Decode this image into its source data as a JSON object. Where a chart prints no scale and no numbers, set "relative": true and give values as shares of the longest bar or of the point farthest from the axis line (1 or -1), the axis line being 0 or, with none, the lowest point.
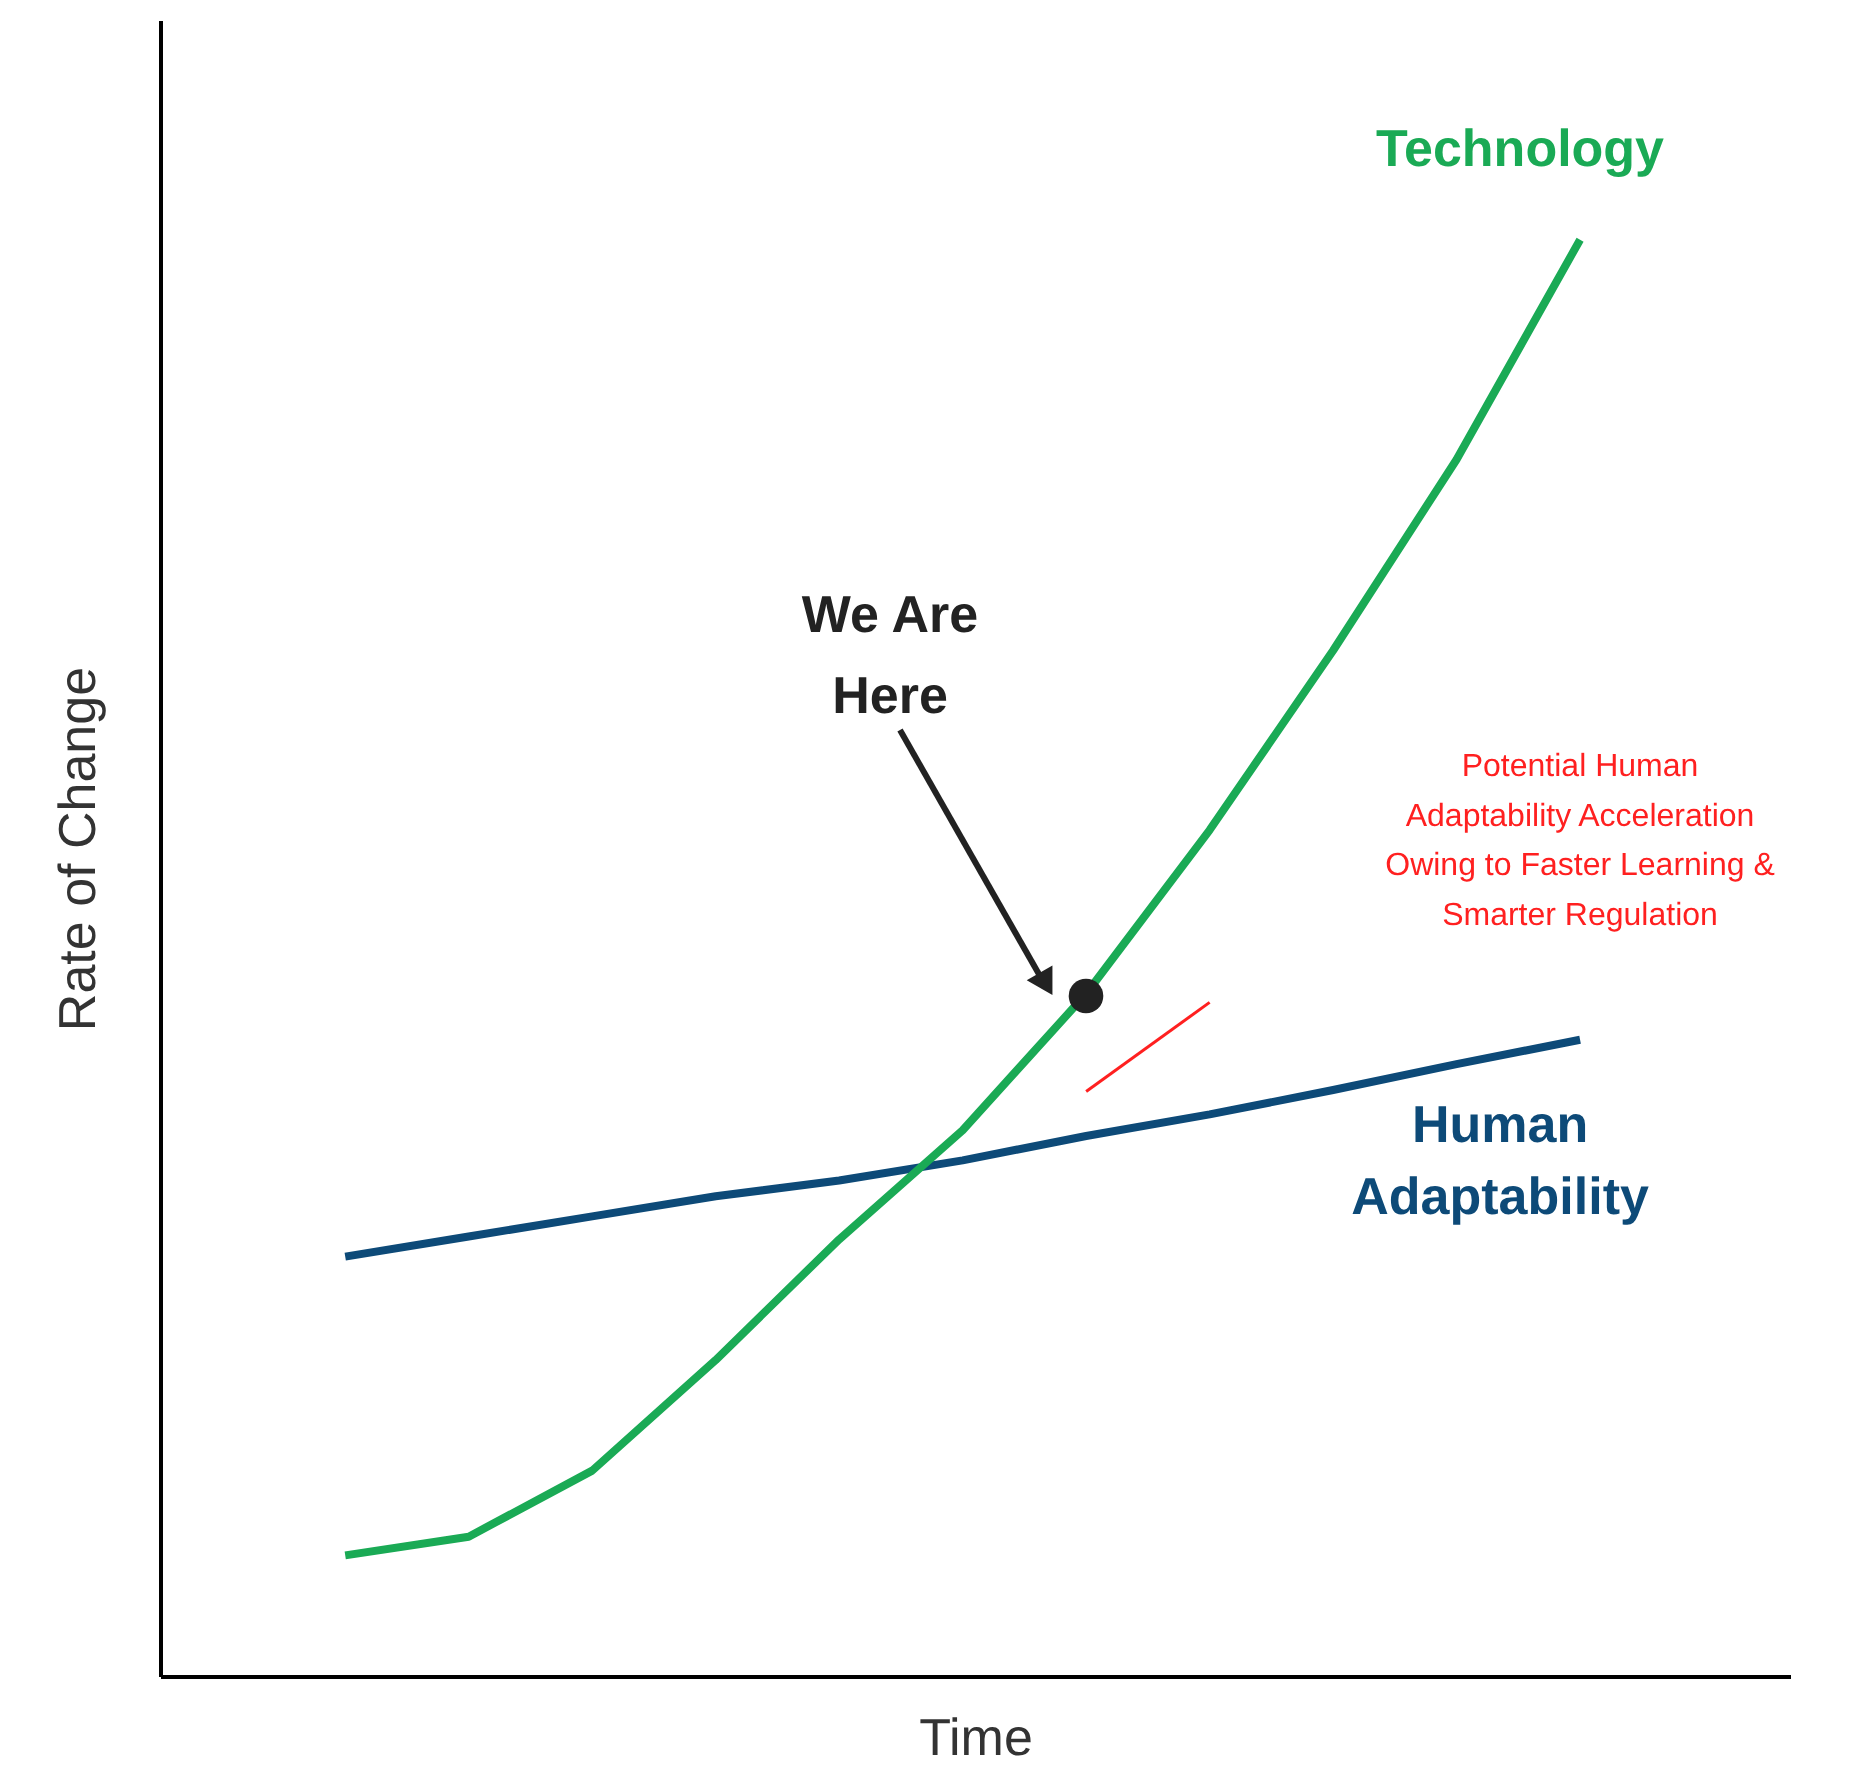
{
  "chart_data": {
    "type": "line",
    "relative": true,
    "tick_labels": false,
    "xlabel": "Time",
    "ylabel": "Rate of Change",
    "categories": [
      null,
      null,
      null,
      null,
      null,
      null,
      null,
      null,
      null,
      null,
      null
    ],
    "series": [
      {
        "name": "Human Adaptability",
        "color": "#0d4a78",
        "values": [
          0.292,
          0.306,
          0.32,
          0.334,
          0.345,
          0.359,
          0.376,
          0.391,
          0.408,
          0.426,
          0.443
        ]
      },
      {
        "color": "#ff2020",
        "values": [
          null,
          null,
          null,
          null,
          null,
          null,
          0.407,
          0.469,
          null,
          null,
          null
        ]
      },
      {
        "name": "Technology",
        "color": "#1aaa55",
        "values": [
          0.084,
          0.097,
          0.143,
          0.22,
          0.304,
          0.38,
          0.475,
          0.589,
          0.714,
          0.847,
          1.0
        ]
      }
    ],
    "annotations": [
      "We Are Here",
      "Potential Human Adaptability Acceleration Owing to Faster Learning & Smarter Regulation"
    ]
  }
}
